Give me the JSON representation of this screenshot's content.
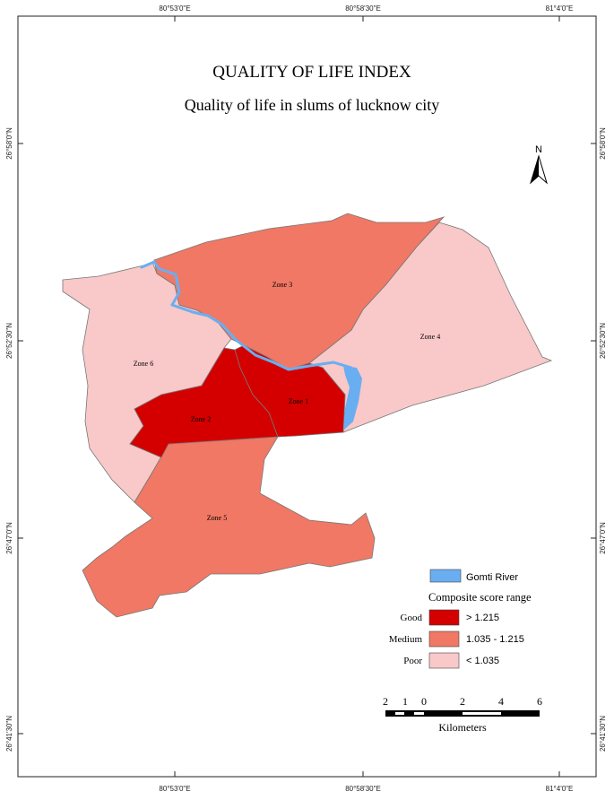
{
  "title": "QUALITY OF LIFE INDEX",
  "subtitle": "Quality of life in slums of lucknow city",
  "coords": {
    "top": [
      "80°53'0\"E",
      "80°58'30\"E",
      "81°4'0\"E"
    ],
    "bottom": [
      "80°53'0\"E",
      "80°58'30\"E",
      "81°4'0\"E"
    ],
    "left": [
      "26°58'0\"N",
      "26°52'30\"N",
      "26°47'0\"N",
      "26°41'30\"N"
    ],
    "right": [
      "26°58'0\"N",
      "26°52'30\"N",
      "26°47'0\"N",
      "26°41'30\"N"
    ]
  },
  "north_arrow": {
    "label": "N"
  },
  "zones": [
    {
      "name": "Zone 1",
      "category": "good"
    },
    {
      "name": "Zone 2",
      "category": "good"
    },
    {
      "name": "Zone 3",
      "category": "medium"
    },
    {
      "name": "Zone 4",
      "category": "poor"
    },
    {
      "name": "Zone 5",
      "category": "medium"
    },
    {
      "name": "Zone 6",
      "category": "poor"
    }
  ],
  "colors": {
    "good": "#d40000",
    "medium": "#f07864",
    "poor": "#f9c8c8",
    "river": "#6aaef2",
    "boundary": "#777777"
  },
  "legend": {
    "river_label": "Gomti River",
    "heading": "Composite score range",
    "items": [
      {
        "label": "Good",
        "range": "> 1.215",
        "category": "good"
      },
      {
        "label": "Medium",
        "range": "1.035 - 1.215",
        "category": "medium"
      },
      {
        "label": "Poor",
        "range": "< 1.035",
        "category": "poor"
      }
    ]
  },
  "scale_bar": {
    "ticks": [
      "2",
      "1",
      "0",
      "2",
      "4",
      "6"
    ],
    "unit": "Kilometers"
  }
}
